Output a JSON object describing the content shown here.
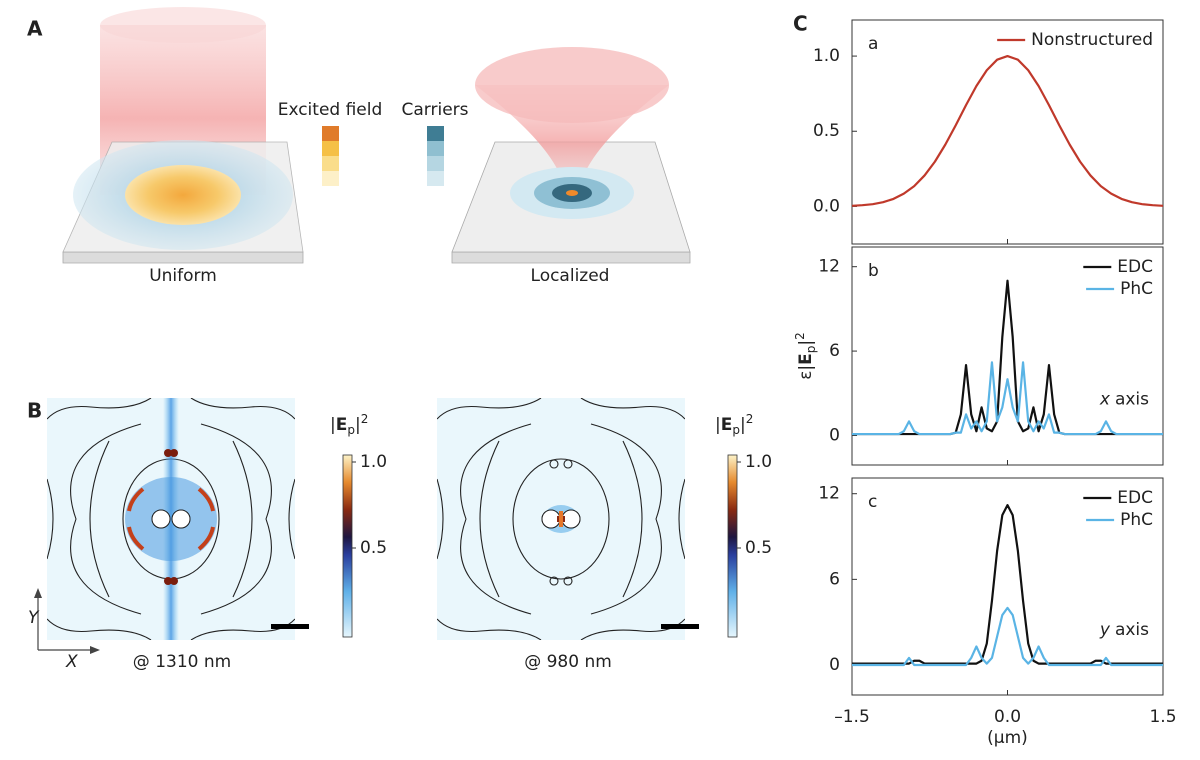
{
  "panel_a": {
    "label": "A",
    "caption_left": "Uniform",
    "caption_right": "Localized",
    "legend_field": "Excited field",
    "legend_carriers": "Carriers"
  },
  "panel_b": {
    "label": "B",
    "captions": [
      "@ 1310 nm",
      "@ 980 nm"
    ],
    "axis_y": "Y",
    "axis_x": "X",
    "colorbar": {
      "title_parts": [
        "|",
        "E",
        "p",
        "|",
        "2"
      ],
      "lim": [
        0,
        1
      ],
      "ticks": [
        {
          "value": 1,
          "label": "1.0"
        },
        0.5
      ]
    }
  },
  "panel_c": {
    "label": "C"
  },
  "chart_data": [
    {
      "type": "line",
      "label": "a",
      "xlim": [
        -1.5,
        1.5
      ],
      "xticks": [
        -1.5,
        0,
        1.5
      ],
      "xtick_labels": false,
      "ylim": [
        -0.25,
        1.24
      ],
      "yticks": [
        {
          "value": 0,
          "label": "0.0"
        },
        0.5,
        {
          "value": 1,
          "label": "1.0"
        }
      ],
      "legend": "upper right",
      "x": [
        -1.5,
        -1.4,
        -1.3,
        -1.2,
        -1.1,
        -1,
        -0.9,
        -0.8,
        -0.7,
        -0.6,
        -0.5,
        -0.4,
        -0.3,
        -0.2,
        -0.1,
        0,
        0.1,
        0.2,
        0.3,
        0.4,
        0.5,
        0.6,
        0.7,
        0.8,
        0.9,
        1,
        1.1,
        1.2,
        1.3,
        1.4,
        1.5
      ],
      "series": [
        {
          "name": "Nonstructured",
          "color": "#c0392b",
          "values": [
            0.004,
            0.008,
            0.015,
            0.028,
            0.05,
            0.085,
            0.135,
            0.206,
            0.298,
            0.411,
            0.539,
            0.674,
            0.801,
            0.906,
            0.976,
            1,
            0.976,
            0.906,
            0.801,
            0.674,
            0.539,
            0.411,
            0.298,
            0.206,
            0.135,
            0.085,
            0.05,
            0.028,
            0.015,
            0.008,
            0.004
          ]
        }
      ]
    },
    {
      "type": "line",
      "label": "b",
      "xlim": [
        -1.5,
        1.5
      ],
      "xticks": [
        -1.5,
        0,
        1.5
      ],
      "xtick_labels": false,
      "ylim": [
        -2.1,
        13.4
      ],
      "yticks": [
        0,
        6,
        12
      ],
      "legend": "upper right",
      "ylabel_parts": [
        "ε|",
        "E",
        "p",
        "|",
        "2"
      ],
      "annotation_var": "x",
      "annotation": "axis",
      "x": [
        -1.5,
        -1.45,
        -1.4,
        -1.35,
        -1.3,
        -1.25,
        -1.2,
        -1.15,
        -1.1,
        -1.05,
        -1,
        -0.95,
        -0.9,
        -0.85,
        -0.8,
        -0.75,
        -0.7,
        -0.65,
        -0.6,
        -0.55,
        -0.5,
        -0.45,
        -0.4,
        -0.35,
        -0.3,
        -0.25,
        -0.2,
        -0.15,
        -0.1,
        -0.05,
        0,
        0.05,
        0.1,
        0.15,
        0.2,
        0.25,
        0.3,
        0.35,
        0.4,
        0.45,
        0.5,
        0.55,
        0.6,
        0.65,
        0.7,
        0.75,
        0.8,
        0.85,
        0.9,
        0.95,
        1,
        1.05,
        1.1,
        1.15,
        1.2,
        1.25,
        1.3,
        1.35,
        1.4,
        1.45,
        1.5
      ],
      "series": [
        {
          "name": "EDC",
          "color": "#111111",
          "values": [
            0.1,
            0.1,
            0.1,
            0.1,
            0.1,
            0.1,
            0.1,
            0.1,
            0.1,
            0.1,
            0.1,
            0.1,
            0.1,
            0.1,
            0.1,
            0.1,
            0.1,
            0.1,
            0.1,
            0.1,
            0.2,
            1.5,
            5,
            1.5,
            0.3,
            2,
            0.5,
            0.3,
            1,
            7,
            11,
            7,
            1,
            0.3,
            0.5,
            2,
            0.3,
            1.5,
            5,
            1.5,
            0.2,
            0.1,
            0.1,
            0.1,
            0.1,
            0.1,
            0.1,
            0.1,
            0.1,
            0.1,
            0.1,
            0.1,
            0.1,
            0.1,
            0.1,
            0.1,
            0.1,
            0.1,
            0.1,
            0.1,
            0.1
          ]
        },
        {
          "name": "PhC",
          "color": "#5ab4e5",
          "values": [
            0.1,
            0.1,
            0.1,
            0.1,
            0.1,
            0.1,
            0.1,
            0.1,
            0.1,
            0.1,
            0.3,
            1,
            0.3,
            0.1,
            0.1,
            0.1,
            0.1,
            0.1,
            0.1,
            0.1,
            0.2,
            0.2,
            1.5,
            0.5,
            1,
            0.3,
            1,
            5.2,
            1,
            2,
            4,
            2,
            1,
            5.2,
            1,
            0.3,
            1,
            0.5,
            1.5,
            0.2,
            0.2,
            0.1,
            0.1,
            0.1,
            0.1,
            0.1,
            0.1,
            0.1,
            0.3,
            1,
            0.3,
            0.1,
            0.1,
            0.1,
            0.1,
            0.1,
            0.1,
            0.1,
            0.1,
            0.1,
            0.1
          ]
        }
      ]
    },
    {
      "type": "line",
      "label": "c",
      "xlim": [
        -1.5,
        1.5
      ],
      "xticks": [
        {
          "value": -1.5,
          "label": "–1.5"
        },
        {
          "value": 0,
          "label": "0.0"
        },
        1.5
      ],
      "xlabel": "(μm)",
      "ylim": [
        -2.1,
        13.1
      ],
      "yticks": [
        0,
        6,
        12
      ],
      "legend": "upper right",
      "annotation_var": "y",
      "annotation": "axis",
      "x": [
        -1.5,
        -1.45,
        -1.4,
        -1.35,
        -1.3,
        -1.25,
        -1.2,
        -1.15,
        -1.1,
        -1.05,
        -1,
        -0.95,
        -0.9,
        -0.85,
        -0.8,
        -0.75,
        -0.7,
        -0.65,
        -0.6,
        -0.55,
        -0.5,
        -0.45,
        -0.4,
        -0.35,
        -0.3,
        -0.25,
        -0.2,
        -0.15,
        -0.1,
        -0.05,
        0,
        0.05,
        0.1,
        0.15,
        0.2,
        0.25,
        0.3,
        0.35,
        0.4,
        0.45,
        0.5,
        0.55,
        0.6,
        0.65,
        0.7,
        0.75,
        0.8,
        0.85,
        0.9,
        0.95,
        1,
        1.05,
        1.1,
        1.15,
        1.2,
        1.25,
        1.3,
        1.35,
        1.4,
        1.45,
        1.5
      ],
      "series": [
        {
          "name": "EDC",
          "color": "#111111",
          "values": [
            0.1,
            0.1,
            0.1,
            0.1,
            0.1,
            0.1,
            0.1,
            0.1,
            0.1,
            0.1,
            0.1,
            0.1,
            0.3,
            0.3,
            0.1,
            0.1,
            0.1,
            0.1,
            0.1,
            0.1,
            0.1,
            0.1,
            0.1,
            0.1,
            0.1,
            0.3,
            1.5,
            4.5,
            8,
            10.5,
            11.2,
            10.5,
            8,
            4.5,
            1.5,
            0.3,
            0.1,
            0.1,
            0.1,
            0.1,
            0.1,
            0.1,
            0.1,
            0.1,
            0.1,
            0.1,
            0.1,
            0.3,
            0.3,
            0.1,
            0.1,
            0.1,
            0.1,
            0.1,
            0.1,
            0.1,
            0.1,
            0.1,
            0.1,
            0.1,
            0.1
          ]
        },
        {
          "name": "PhC",
          "color": "#5ab4e5",
          "values": [
            0,
            0,
            0,
            0,
            0,
            0,
            0,
            0,
            0,
            0,
            0,
            0.5,
            0,
            0,
            0,
            0,
            0,
            0,
            0,
            0,
            0,
            0,
            0,
            0.5,
            1.3,
            0.5,
            0.1,
            0.5,
            2,
            3.5,
            4,
            3.5,
            2,
            0.5,
            0.1,
            0.5,
            1.3,
            0.5,
            0,
            0,
            0,
            0,
            0,
            0,
            0,
            0,
            0,
            0,
            0,
            0.5,
            0,
            0,
            0,
            0,
            0,
            0,
            0,
            0,
            0,
            0,
            0
          ]
        }
      ]
    }
  ]
}
